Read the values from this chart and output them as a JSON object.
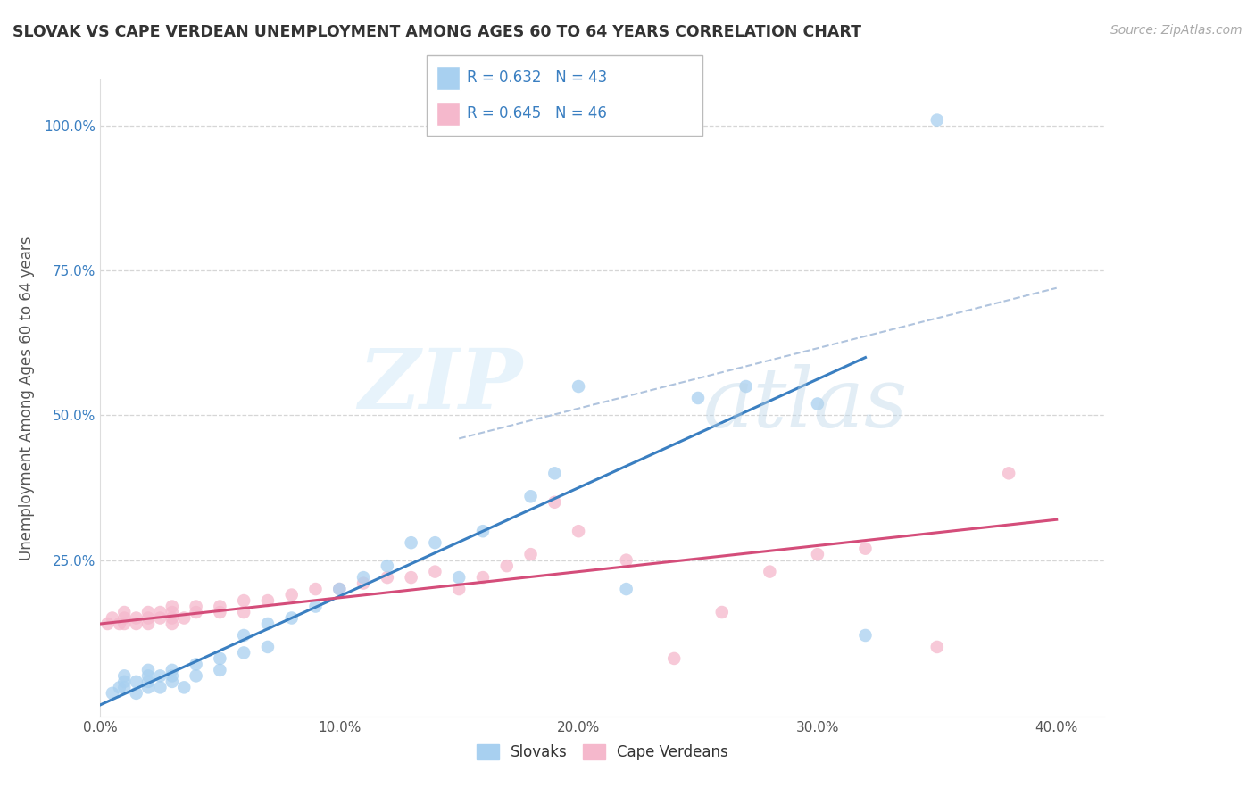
{
  "title": "SLOVAK VS CAPE VERDEAN UNEMPLOYMENT AMONG AGES 60 TO 64 YEARS CORRELATION CHART",
  "source": "Source: ZipAtlas.com",
  "ylabel": "Unemployment Among Ages 60 to 64 years",
  "xlim": [
    0.0,
    0.42
  ],
  "ylim": [
    -0.02,
    1.08
  ],
  "xtick_labels": [
    "0.0%",
    "10.0%",
    "20.0%",
    "30.0%",
    "40.0%"
  ],
  "xtick_values": [
    0.0,
    0.1,
    0.2,
    0.3,
    0.4
  ],
  "ytick_labels": [
    "25.0%",
    "50.0%",
    "75.0%",
    "100.0%"
  ],
  "ytick_values": [
    0.25,
    0.5,
    0.75,
    1.0
  ],
  "slovak_color": "#a8d0f0",
  "cape_verdean_color": "#f5b8cc",
  "slovak_line_color": "#3a7fc1",
  "cape_verdean_line_color": "#d44d7a",
  "ref_line_color": "#b0c4de",
  "slovak_R": 0.632,
  "slovak_N": 43,
  "cape_verdean_R": 0.645,
  "cape_verdean_N": 46,
  "watermark_zip": "ZIP",
  "watermark_atlas": "atlas",
  "background_color": "#ffffff",
  "grid_color": "#cccccc",
  "legend_text_color": "#3a7fc1",
  "title_color": "#333333",
  "tick_color": "#555555",
  "ylabel_color": "#555555",
  "slovak_line_x": [
    0.0,
    0.32
  ],
  "slovak_line_y": [
    0.0,
    0.6
  ],
  "cape_verdean_line_x": [
    0.0,
    0.4
  ],
  "cape_verdean_line_y": [
    0.14,
    0.32
  ],
  "ref_line_x": [
    0.15,
    0.4
  ],
  "ref_line_y": [
    0.46,
    0.72
  ],
  "slovak_scatter_x": [
    0.005,
    0.008,
    0.01,
    0.01,
    0.01,
    0.015,
    0.015,
    0.02,
    0.02,
    0.02,
    0.02,
    0.025,
    0.025,
    0.03,
    0.03,
    0.03,
    0.035,
    0.04,
    0.04,
    0.05,
    0.05,
    0.06,
    0.06,
    0.07,
    0.07,
    0.08,
    0.09,
    0.1,
    0.11,
    0.12,
    0.13,
    0.14,
    0.15,
    0.16,
    0.18,
    0.19,
    0.2,
    0.22,
    0.25,
    0.27,
    0.3,
    0.32,
    0.35
  ],
  "slovak_scatter_y": [
    0.02,
    0.03,
    0.03,
    0.04,
    0.05,
    0.02,
    0.04,
    0.03,
    0.04,
    0.05,
    0.06,
    0.03,
    0.05,
    0.04,
    0.05,
    0.06,
    0.03,
    0.05,
    0.07,
    0.06,
    0.08,
    0.09,
    0.12,
    0.1,
    0.14,
    0.15,
    0.17,
    0.2,
    0.22,
    0.24,
    0.28,
    0.28,
    0.22,
    0.3,
    0.36,
    0.4,
    0.55,
    0.2,
    0.53,
    0.55,
    0.52,
    0.12,
    1.01
  ],
  "cape_verdean_scatter_x": [
    0.003,
    0.005,
    0.008,
    0.01,
    0.01,
    0.01,
    0.015,
    0.015,
    0.02,
    0.02,
    0.02,
    0.025,
    0.025,
    0.03,
    0.03,
    0.03,
    0.03,
    0.035,
    0.04,
    0.04,
    0.05,
    0.05,
    0.06,
    0.06,
    0.07,
    0.08,
    0.09,
    0.1,
    0.11,
    0.12,
    0.13,
    0.14,
    0.15,
    0.16,
    0.17,
    0.18,
    0.19,
    0.2,
    0.22,
    0.24,
    0.26,
    0.28,
    0.3,
    0.32,
    0.35,
    0.38
  ],
  "cape_verdean_scatter_y": [
    0.14,
    0.15,
    0.14,
    0.14,
    0.15,
    0.16,
    0.14,
    0.15,
    0.14,
    0.15,
    0.16,
    0.15,
    0.16,
    0.14,
    0.15,
    0.16,
    0.17,
    0.15,
    0.16,
    0.17,
    0.16,
    0.17,
    0.16,
    0.18,
    0.18,
    0.19,
    0.2,
    0.2,
    0.21,
    0.22,
    0.22,
    0.23,
    0.2,
    0.22,
    0.24,
    0.26,
    0.35,
    0.3,
    0.25,
    0.08,
    0.16,
    0.23,
    0.26,
    0.27,
    0.1,
    0.4
  ]
}
